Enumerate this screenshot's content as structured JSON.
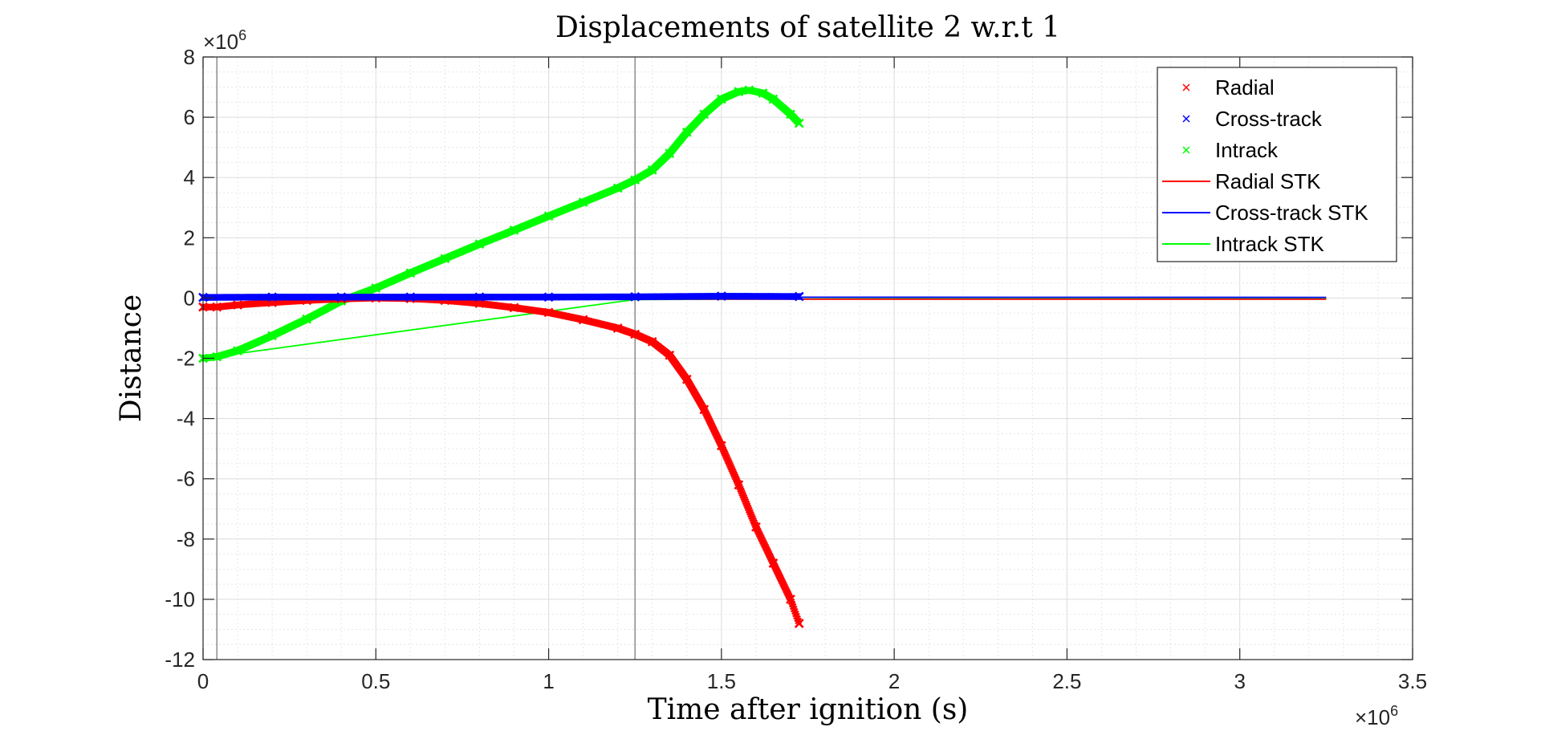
{
  "chart_data": {
    "type": "line",
    "title": "Displacements of satellite 2 w.r.t 1",
    "xlabel": "Time after ignition (s)",
    "ylabel": "Distance",
    "x_exponent": "×10",
    "x_exponent_power": "6",
    "y_exponent": "×10",
    "y_exponent_power": "6",
    "xlim": [
      0,
      3500000
    ],
    "ylim": [
      -12000000,
      8000000
    ],
    "xticks": [
      0,
      500000,
      1000000,
      1500000,
      2000000,
      2500000,
      3000000,
      3500000
    ],
    "xtick_labels": [
      "0",
      "0.5",
      "1",
      "1.5",
      "2",
      "2.5",
      "3",
      "3.5"
    ],
    "yticks": [
      -12000000,
      -10000000,
      -8000000,
      -6000000,
      -4000000,
      -2000000,
      0,
      2000000,
      4000000,
      6000000,
      8000000
    ],
    "ytick_labels": [
      "-12",
      "-10",
      "-8",
      "-6",
      "-4",
      "-2",
      "0",
      "2",
      "4",
      "6",
      "8"
    ],
    "grid": true,
    "minor_grid": true,
    "legend_position": "top-right",
    "vertical_lines": [
      40000,
      1250000
    ],
    "series": [
      {
        "name": "Radial",
        "style": "markers",
        "marker": "x",
        "color": "#ff0000",
        "x": [
          0,
          40000,
          100000,
          200000,
          300000,
          400000,
          500000,
          600000,
          700000,
          800000,
          900000,
          1000000,
          1100000,
          1200000,
          1250000,
          1300000,
          1350000,
          1400000,
          1450000,
          1500000,
          1550000,
          1600000,
          1650000,
          1700000,
          1725000
        ],
        "y": [
          -300000,
          -300000,
          -230000,
          -150000,
          -80000,
          -30000,
          0,
          -20000,
          -80000,
          -180000,
          -320000,
          -480000,
          -720000,
          -1000000,
          -1200000,
          -1450000,
          -1900000,
          -2700000,
          -3700000,
          -4900000,
          -6200000,
          -7600000,
          -8800000,
          -10000000,
          -10800000
        ]
      },
      {
        "name": "Cross-track",
        "style": "markers",
        "marker": "x",
        "color": "#0000ff",
        "x": [
          0,
          200000,
          400000,
          600000,
          800000,
          1000000,
          1250000,
          1500000,
          1725000
        ],
        "y": [
          20000,
          30000,
          30000,
          30000,
          30000,
          30000,
          40000,
          60000,
          50000
        ]
      },
      {
        "name": "Intrack",
        "style": "markers",
        "marker": "x",
        "color": "#00ff00",
        "x": [
          0,
          40000,
          100000,
          200000,
          300000,
          400000,
          500000,
          600000,
          700000,
          800000,
          900000,
          1000000,
          1100000,
          1200000,
          1250000,
          1300000,
          1350000,
          1400000,
          1450000,
          1500000,
          1550000,
          1580000,
          1620000,
          1650000,
          1700000,
          1725000
        ],
        "y": [
          -2000000,
          -1950000,
          -1750000,
          -1250000,
          -700000,
          -100000,
          330000,
          830000,
          1310000,
          1790000,
          2250000,
          2720000,
          3180000,
          3650000,
          3920000,
          4250000,
          4800000,
          5500000,
          6100000,
          6600000,
          6850000,
          6900000,
          6800000,
          6600000,
          6100000,
          5800000
        ]
      },
      {
        "name": "Radial STK",
        "style": "line",
        "color": "#ff0000",
        "x": [
          1250000,
          3250000
        ],
        "y": [
          -40000,
          -40000
        ]
      },
      {
        "name": "Cross-track STK",
        "style": "line",
        "color": "#0000ff",
        "x": [
          0,
          1250000,
          3250000
        ],
        "y": [
          30000,
          30000,
          20000
        ]
      },
      {
        "name": "Intrack STK",
        "style": "line",
        "color": "#00ff00",
        "x": [
          0,
          1250000,
          2000000,
          3250000
        ],
        "y": [
          -2000000,
          -50000,
          -20000,
          -10000
        ]
      }
    ]
  }
}
